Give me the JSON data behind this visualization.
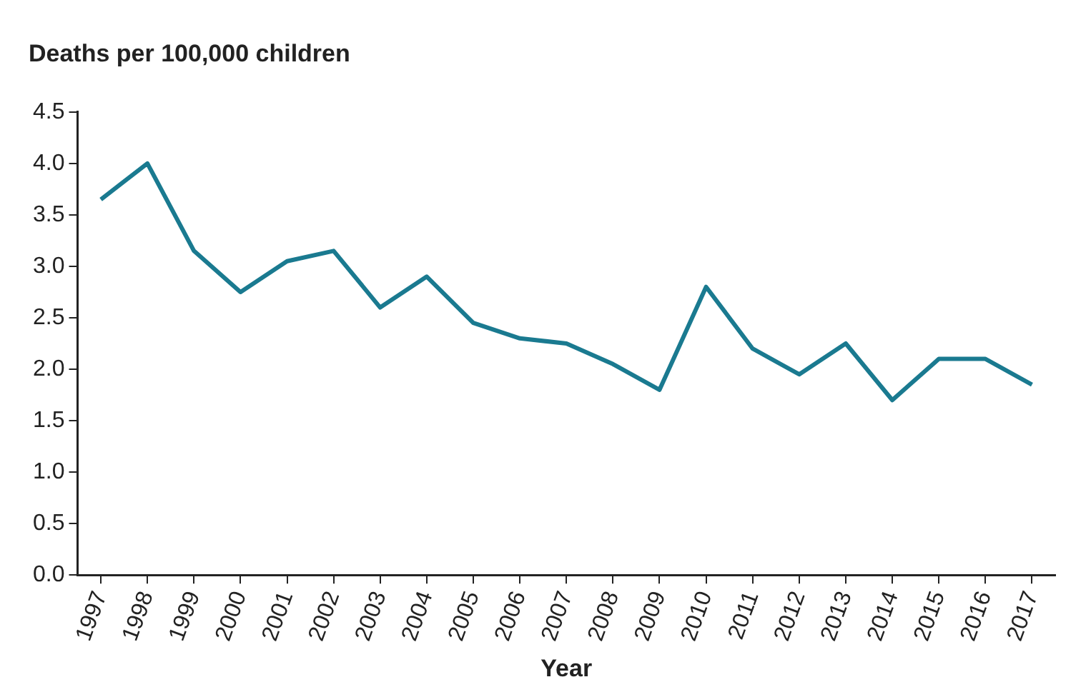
{
  "chart_data": {
    "type": "line",
    "ylabel": "Deaths per 100,000 children",
    "xlabel": "Year",
    "categories": [
      "1997",
      "1998",
      "1999",
      "2000",
      "2001",
      "2002",
      "2003",
      "2004",
      "2005",
      "2006",
      "2007",
      "2008",
      "2009",
      "2010",
      "2011",
      "2012",
      "2013",
      "2014",
      "2015",
      "2016",
      "2017"
    ],
    "series": [
      {
        "color": "#1a7a90",
        "values": [
          3.65,
          4.0,
          3.15,
          2.75,
          3.05,
          3.15,
          2.6,
          2.9,
          2.45,
          2.3,
          2.25,
          2.05,
          1.8,
          2.8,
          2.2,
          1.95,
          2.25,
          1.7,
          2.1,
          2.1,
          1.85
        ]
      }
    ],
    "ylim": [
      0,
      4.5
    ],
    "yticks": [
      {
        "value": 0,
        "label": "0.0"
      },
      {
        "value": 0.5,
        "label": "0.5"
      },
      {
        "value": 1,
        "label": "1.0"
      },
      {
        "value": 1.5,
        "label": "1.5"
      },
      {
        "value": 2,
        "label": "2.0"
      },
      {
        "value": 2.5,
        "label": "2.5"
      },
      {
        "value": 3,
        "label": "3.0"
      },
      {
        "value": 3.5,
        "label": "3.5"
      },
      {
        "value": 4,
        "label": "4.0"
      },
      {
        "value": 4.5,
        "label": "4.5"
      }
    ],
    "grid": false,
    "legend": false,
    "marker": "none",
    "line_style": "solid"
  }
}
